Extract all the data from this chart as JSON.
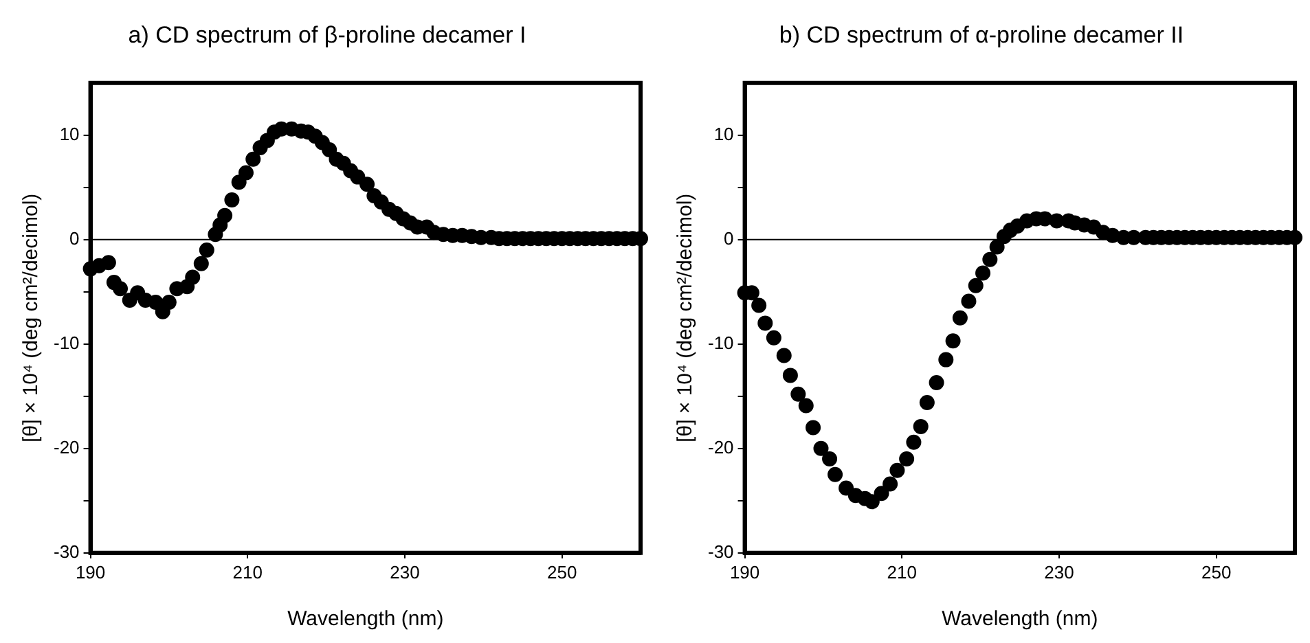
{
  "chart_data": [
    {
      "type": "scatter",
      "title": "a) CD spectrum of β-proline decamer I",
      "xlabel": "Wavelength (nm)",
      "ylabel": "[θ] × 10⁴ (deg cm²/decimol)",
      "marker": "circle",
      "xlim": [
        190,
        260
      ],
      "ylim": [
        -30,
        15
      ],
      "xticks": [
        190,
        210,
        230,
        250
      ],
      "yticks": [
        -30,
        {
          "value": -25,
          "label": null
        },
        -20,
        {
          "value": -15,
          "label": null
        },
        -10,
        {
          "value": -5,
          "label": null
        },
        0,
        {
          "value": 5,
          "label": null
        },
        10
      ],
      "ref_lines": [
        {
          "axis": "y",
          "value": 0,
          "label": null,
          "color": "#000000"
        }
      ],
      "series": [
        {
          "color": "#000000",
          "x": [
            190,
            191.1,
            192.3,
            193,
            193.8,
            195,
            196,
            197,
            198.3,
            199.2,
            200,
            201,
            202.3,
            203,
            204.1,
            204.8,
            205.9,
            206.5,
            207.1,
            208,
            208.9,
            209.8,
            210.7,
            211.6,
            212.5,
            213.4,
            214.3,
            215.6,
            216.8,
            217.7,
            218.6,
            219.5,
            220.4,
            221.3,
            222.2,
            223.1,
            224,
            225.2,
            226.1,
            227,
            228,
            228.9,
            229.8,
            230.7,
            231.6,
            232.8,
            233.7,
            234.9,
            236.1,
            237.3,
            238.5,
            239.7,
            241,
            242,
            243,
            244,
            245,
            246,
            247,
            248,
            249,
            250,
            251,
            252,
            253,
            254,
            255,
            256,
            257,
            258,
            259,
            260
          ],
          "values": [
            -2.8,
            -2.5,
            -2.2,
            -4.1,
            -4.7,
            -5.8,
            -5.1,
            -5.8,
            -6,
            -6.9,
            -6,
            -4.7,
            -4.5,
            -3.6,
            -2.3,
            -1,
            0.5,
            1.4,
            2.3,
            3.8,
            5.5,
            6.4,
            7.7,
            8.8,
            9.5,
            10.3,
            10.6,
            10.6,
            10.4,
            10.3,
            9.9,
            9.3,
            8.6,
            7.7,
            7.3,
            6.6,
            6,
            5.3,
            4.2,
            3.6,
            2.9,
            2.5,
            2,
            1.6,
            1.2,
            1.2,
            0.7,
            0.5,
            0.4,
            0.4,
            0.3,
            0.2,
            0.2,
            0.1,
            0.1,
            0.1,
            0.1,
            0.1,
            0.1,
            0.1,
            0.1,
            0.1,
            0.1,
            0.1,
            0.1,
            0.1,
            0.1,
            0.1,
            0.1,
            0.1,
            0.1,
            0.1
          ]
        }
      ]
    },
    {
      "type": "scatter",
      "title": "b) CD spectrum of α-proline decamer II",
      "xlabel": "Wavelength (nm)",
      "ylabel": "[θ] × 10⁴ (deg cm²/decimol)",
      "marker": "circle",
      "xlim": [
        190,
        260
      ],
      "ylim": [
        -30,
        15
      ],
      "xticks": [
        190,
        210,
        230,
        250
      ],
      "yticks": [
        -30,
        {
          "value": -25,
          "label": null
        },
        -20,
        {
          "value": -15,
          "label": null
        },
        -10,
        {
          "value": -5,
          "label": null
        },
        0,
        {
          "value": 5,
          "label": null
        },
        10
      ],
      "ref_lines": [
        {
          "axis": "y",
          "value": 0,
          "label": null,
          "color": "#000000"
        }
      ],
      "series": [
        {
          "color": "#000000",
          "x": [
            190,
            190.9,
            191.8,
            192.6,
            193.7,
            195,
            195.8,
            196.8,
            197.8,
            198.7,
            199.7,
            200.8,
            201.5,
            202.9,
            204.1,
            205.3,
            206.2,
            207.4,
            208.5,
            209.4,
            210.6,
            211.5,
            212.4,
            213.2,
            214.4,
            215.6,
            216.5,
            217.4,
            218.5,
            219.4,
            220.3,
            221.2,
            222.1,
            223,
            223.8,
            224.7,
            225.9,
            227.1,
            228.2,
            229.7,
            231.2,
            232,
            233.2,
            234.4,
            235.6,
            236.8,
            238.2,
            239.5,
            241,
            242,
            243,
            244,
            245,
            246,
            247,
            248,
            249,
            250,
            251,
            252,
            253,
            254,
            255,
            256,
            257,
            258,
            259,
            260
          ],
          "values": [
            -5.1,
            -5.1,
            -6.3,
            -8,
            -9.4,
            -11.1,
            -13,
            -14.8,
            -15.9,
            -18,
            -20,
            -21,
            -22.5,
            -23.8,
            -24.5,
            -24.8,
            -25.1,
            -24.3,
            -23.4,
            -22.1,
            -21,
            -19.4,
            -17.9,
            -15.6,
            -13.7,
            -11.5,
            -9.7,
            -7.5,
            -5.9,
            -4.4,
            -3.2,
            -1.9,
            -0.7,
            0.3,
            0.9,
            1.3,
            1.8,
            2,
            2,
            1.8,
            1.8,
            1.6,
            1.4,
            1.2,
            0.7,
            0.4,
            0.2,
            0.2,
            0.2,
            0.2,
            0.2,
            0.2,
            0.2,
            0.2,
            0.2,
            0.2,
            0.2,
            0.2,
            0.2,
            0.2,
            0.2,
            0.2,
            0.2,
            0.2,
            0.2,
            0.2,
            0.2,
            0.2
          ]
        }
      ]
    }
  ]
}
